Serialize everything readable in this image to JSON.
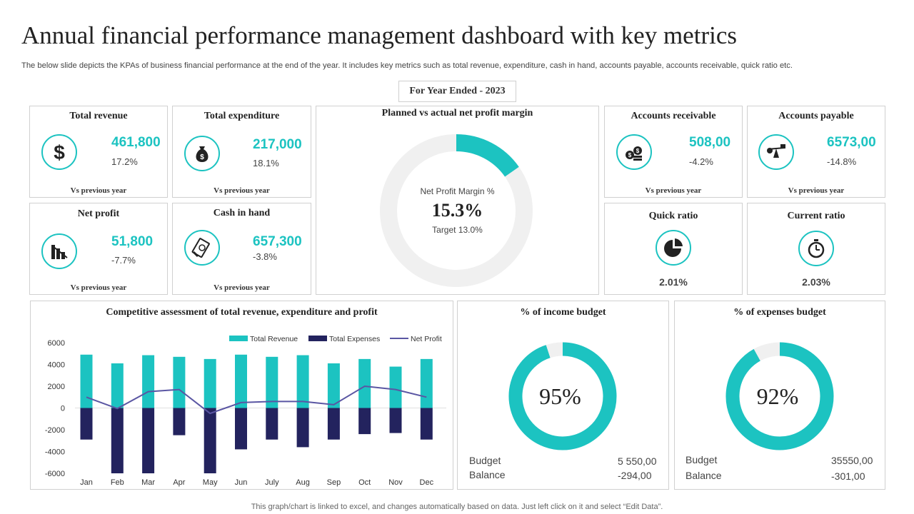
{
  "title": "Annual financial performance management dashboard with key metrics",
  "subtitle": "The below slide depicts the KPAs of business financial performance at the end of the year. It includes key metrics such as total revenue, expenditure, cash in hand, accounts payable, accounts receivable, quick ratio etc.",
  "period_label": "For Year Ended - 2023",
  "colors": {
    "teal": "#1cc3c1",
    "navy": "#23235e",
    "line": "#5a56a3",
    "ring_bg": "#f0f0f0"
  },
  "kpis": {
    "total_revenue": {
      "title": "Total revenue",
      "value": "461,800",
      "change": "17.2%",
      "footer": "Vs previous year",
      "icon": "dollar-icon"
    },
    "total_expenditure": {
      "title": "Total expenditure",
      "value": "217,000",
      "change": "18.1%",
      "footer": "Vs previous year",
      "icon": "money-bag-icon"
    },
    "net_profit": {
      "title": "Net profit",
      "value": "51,800",
      "change": "-7.7%",
      "footer": "Vs previous year",
      "icon": "declining-bars-icon"
    },
    "cash_in_hand": {
      "title": "Cash in hand",
      "value": "657,300",
      "change": "-3.8%",
      "footer": "Vs previous year",
      "icon": "cash-hand-icon"
    },
    "accounts_receivable": {
      "title": "Accounts receivable",
      "value": "508,00",
      "change": "-4.2%",
      "footer": "Vs previous year",
      "icon": "coins-icon"
    },
    "accounts_payable": {
      "title": "Accounts payable",
      "value": "6573,00",
      "change": "-14.8%",
      "footer": "Vs previous year",
      "icon": "balance-scale-icon"
    }
  },
  "ratios": {
    "quick_ratio": {
      "title": "Quick ratio",
      "value": "2.01%",
      "icon": "pie-icon"
    },
    "current_ratio": {
      "title": "Current ratio",
      "value": "2.03%",
      "icon": "stopwatch-icon"
    }
  },
  "profit_margin": {
    "title": "Planned vs actual net profit margin",
    "label": "Net Profit Margin %",
    "value_text": "15.3%",
    "target_text": "Target 13.0%",
    "value": 15.3
  },
  "income_budget": {
    "title": "% of income budget",
    "percent_text": "95%",
    "percent": 95,
    "budget_label": "Budget",
    "budget_value": "5 550,00",
    "balance_label": "Balance",
    "balance_value": "-294,00"
  },
  "expenses_budget": {
    "title": "% of expenses budget",
    "percent_text": "92%",
    "percent": 92,
    "budget_label": "Budget",
    "budget_value": "35550,00",
    "balance_label": "Balance",
    "balance_value": "-301,00"
  },
  "chart_data": {
    "type": "bar",
    "title": "Competitive assessment of total revenue, expenditure and profit",
    "categories": [
      "Jan",
      "Feb",
      "Mar",
      "Apr",
      "May",
      "Jun",
      "July",
      "Aug",
      "Sep",
      "Oct",
      "Nov",
      "Dec"
    ],
    "series": [
      {
        "name": "Total Revenue",
        "type": "bar",
        "values": [
          4900,
          4100,
          4850,
          4700,
          4500,
          4900,
          4700,
          4850,
          4100,
          4500,
          3800,
          4500
        ]
      },
      {
        "name": "Total Expenses",
        "type": "bar",
        "values": [
          -2900,
          -6000,
          -6000,
          -2500,
          -6000,
          -3800,
          -2900,
          -3600,
          -2900,
          -2400,
          -2300,
          -2900
        ]
      },
      {
        "name": "Net Profit",
        "type": "line",
        "values": [
          1000,
          -50,
          1500,
          1700,
          -500,
          500,
          600,
          600,
          300,
          2000,
          1700,
          1000
        ]
      }
    ],
    "y_ticks": [
      "6000",
      "4000",
      "2000",
      "0",
      "-2000",
      "-4000",
      "-6000"
    ],
    "ylim": [
      -6000,
      6000
    ],
    "legend": "top-right"
  },
  "footer": "This graph/chart is linked to excel, and changes automatically based on data. Just left click on it and select “Edit Data”."
}
